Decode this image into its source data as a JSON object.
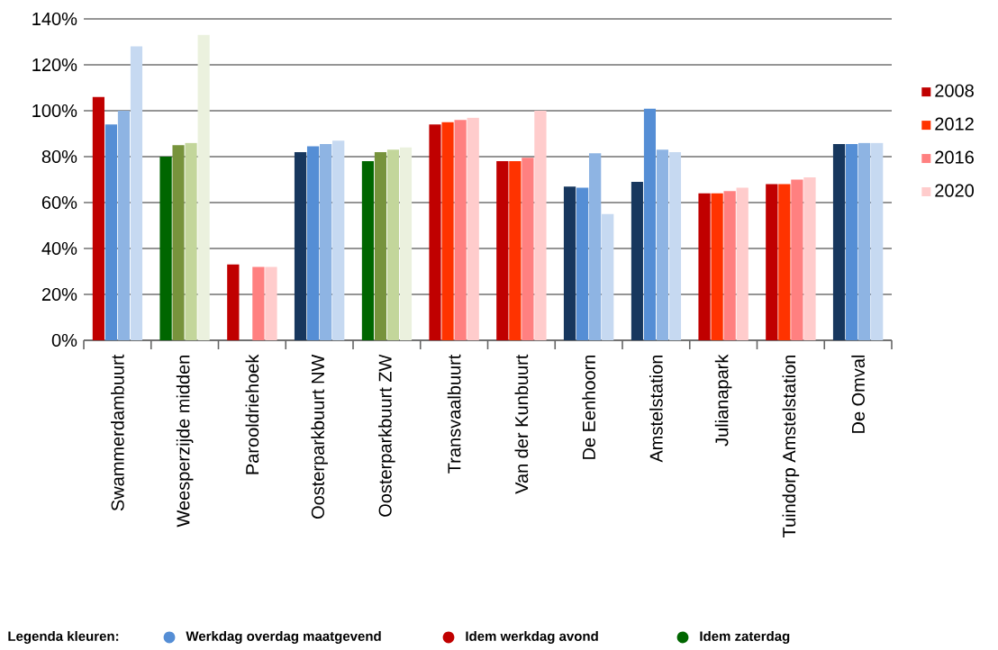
{
  "chart_data": {
    "type": "bar",
    "categories": [
      "Swammerdambuurt",
      "Weesperzijde midden",
      "Parooldriehoek",
      "Oosterparkbuurt NW",
      "Oosterparkbuurt ZW",
      "Transvaalbuurt",
      "Van der Kunbuurt",
      "De Eenhoorn",
      "Amstelstation",
      "Julianapark",
      "Tuindorp Amstelstation",
      "De Omval"
    ],
    "series": [
      {
        "name": "2008",
        "color": "#c00000",
        "values": [
          106,
          80,
          33,
          82,
          78,
          94,
          78,
          67,
          69,
          64,
          68,
          85.5
        ],
        "colors": [
          "#c00000",
          "#006600",
          "#c00000",
          "#17375e",
          "#006600",
          "#c00000",
          "#c00000",
          "#17375e",
          "#17375e",
          "#c00000",
          "#c00000",
          "#17375e"
        ]
      },
      {
        "name": "2012",
        "color": "#ff3300",
        "values": [
          94,
          85,
          null,
          84.5,
          82,
          95,
          78,
          66.5,
          101,
          64,
          68,
          85.5
        ],
        "colors": [
          "#558ed5",
          "#77933c",
          "#ff3300",
          "#558ed5",
          "#77933c",
          "#ff3300",
          "#ff3300",
          "#558ed5",
          "#558ed5",
          "#ff3300",
          "#ff3300",
          "#558ed5"
        ]
      },
      {
        "name": "2016",
        "color": "#ff8080",
        "values": [
          100,
          86,
          32,
          85.5,
          83,
          96,
          79.5,
          81.5,
          83,
          65,
          70,
          86
        ],
        "colors": [
          "#8eb4e3",
          "#c3d69b",
          "#ff8080",
          "#8eb4e3",
          "#c3d69b",
          "#ff8080",
          "#ff8080",
          "#8eb4e3",
          "#8eb4e3",
          "#ff8080",
          "#ff8080",
          "#8eb4e3"
        ]
      },
      {
        "name": "2020",
        "color": "#ffcccc",
        "values": [
          128,
          133,
          32,
          87,
          84,
          97,
          100,
          55,
          82,
          66.5,
          71,
          86
        ],
        "colors": [
          "#c6d9f1",
          "#ebf1de",
          "#ffcccc",
          "#c6d9f1",
          "#ebf1de",
          "#ffcccc",
          "#ffcccc",
          "#c6d9f1",
          "#c6d9f1",
          "#ffcccc",
          "#ffcccc",
          "#c6d9f1"
        ]
      }
    ],
    "ylim": [
      0,
      140
    ],
    "yticks": [
      {
        "value": 0,
        "label": "0%"
      },
      {
        "value": 20,
        "label": "20%"
      },
      {
        "value": 40,
        "label": "40%"
      },
      {
        "value": 60,
        "label": "60%"
      },
      {
        "value": 80,
        "label": "80%"
      },
      {
        "value": 100,
        "label": "100%"
      },
      {
        "value": 120,
        "label": "120%"
      },
      {
        "value": 140,
        "label": "140%"
      }
    ],
    "grid": "y",
    "legend": "right",
    "annotations": [
      "Legenda kleuren:",
      "Werkdag overdag maatgevend",
      "Idem werkdag avond",
      "Idem zaterdag"
    ]
  }
}
